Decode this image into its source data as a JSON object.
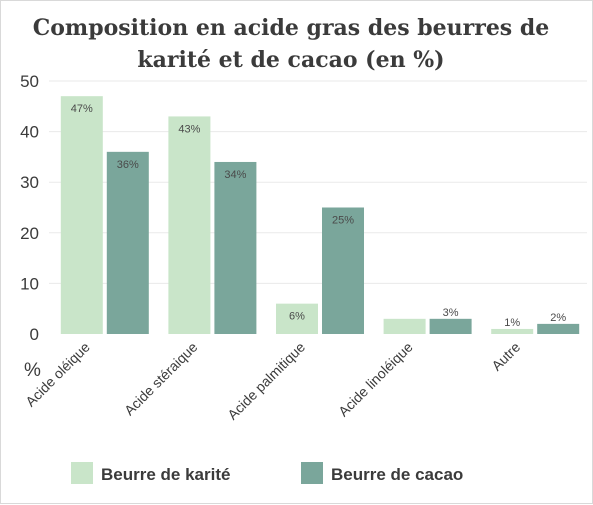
{
  "chart_data": {
    "type": "bar",
    "title": [
      "Composition en acide gras des beurres de",
      "karité et de cacao (en %)"
    ],
    "ylabel": "%",
    "ylim": [
      0,
      50
    ],
    "yticks": [
      0,
      10,
      20,
      30,
      40,
      50
    ],
    "categories": [
      "Acide oléique",
      "Acide stéraique",
      "Acide palmitique",
      "Acide linoléique",
      "Autre"
    ],
    "series": [
      {
        "name": "Beurre de karité",
        "color": "#c9e5c9",
        "values": [
          47,
          43,
          6,
          3,
          1
        ],
        "labels": [
          "47%",
          "43%",
          "6%",
          "",
          "1%"
        ]
      },
      {
        "name": "Beurre de cacao",
        "color": "#7aa69b",
        "values": [
          36,
          34,
          25,
          3,
          2
        ],
        "labels": [
          "36%",
          "34%",
          "25%",
          "3%",
          "2%"
        ]
      }
    ],
    "grid": true,
    "legend": "bottom"
  }
}
